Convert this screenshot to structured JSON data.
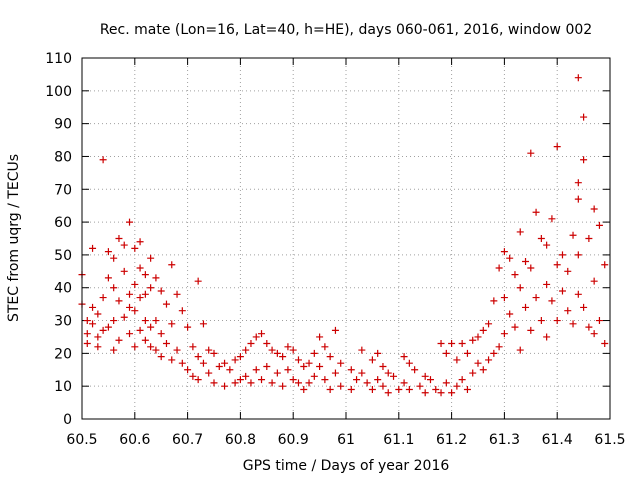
{
  "chart_data": {
    "type": "scatter",
    "title": "Rec. mate (Lon=16, Lat=40, h=HE), days 060-061, 2016, window 002",
    "xlabel": "GPS time / Days of year 2016",
    "ylabel": "STEC from uqrg / TECUs",
    "xlim": [
      60.5,
      61.5
    ],
    "ylim": [
      0,
      110
    ],
    "x_ticks": [
      "60.5",
      "60.6",
      "60.7",
      "60.8",
      "60.9",
      "61",
      "61.1",
      "61.2",
      "61.3",
      "61.4",
      "61.5"
    ],
    "y_ticks": [
      "0",
      "10",
      "20",
      "30",
      "40",
      "50",
      "60",
      "70",
      "80",
      "90",
      "100",
      "110"
    ],
    "grid": true,
    "marker": "+",
    "color": "#cc0000",
    "series": [
      {
        "points": [
          [
            60.5,
            44
          ],
          [
            60.5,
            35
          ],
          [
            60.51,
            30
          ],
          [
            60.51,
            26
          ],
          [
            60.51,
            23
          ],
          [
            60.52,
            52
          ],
          [
            60.52,
            34
          ],
          [
            60.52,
            29
          ],
          [
            60.53,
            32
          ],
          [
            60.53,
            25
          ],
          [
            60.53,
            22
          ],
          [
            60.54,
            79
          ],
          [
            60.54,
            37
          ],
          [
            60.54,
            27
          ],
          [
            60.55,
            51
          ],
          [
            60.55,
            43
          ],
          [
            60.55,
            28
          ],
          [
            60.56,
            49
          ],
          [
            60.56,
            40
          ],
          [
            60.56,
            30
          ],
          [
            60.56,
            21
          ],
          [
            60.57,
            55
          ],
          [
            60.57,
            36
          ],
          [
            60.57,
            24
          ],
          [
            60.58,
            53
          ],
          [
            60.58,
            45
          ],
          [
            60.58,
            31
          ],
          [
            60.59,
            60
          ],
          [
            60.59,
            38
          ],
          [
            60.59,
            34
          ],
          [
            60.59,
            26
          ],
          [
            60.6,
            52
          ],
          [
            60.6,
            41
          ],
          [
            60.6,
            33
          ],
          [
            60.6,
            22
          ],
          [
            60.61,
            54
          ],
          [
            60.61,
            46
          ],
          [
            60.61,
            37
          ],
          [
            60.61,
            27
          ],
          [
            60.62,
            44
          ],
          [
            60.62,
            38
          ],
          [
            60.62,
            30
          ],
          [
            60.62,
            24
          ],
          [
            60.63,
            49
          ],
          [
            60.63,
            40
          ],
          [
            60.63,
            28
          ],
          [
            60.63,
            22
          ],
          [
            60.64,
            43
          ],
          [
            60.64,
            30
          ],
          [
            60.64,
            21
          ],
          [
            60.65,
            39
          ],
          [
            60.65,
            26
          ],
          [
            60.65,
            19
          ],
          [
            60.66,
            35
          ],
          [
            60.66,
            23
          ],
          [
            60.67,
            47
          ],
          [
            60.67,
            29
          ],
          [
            60.67,
            18
          ],
          [
            60.68,
            38
          ],
          [
            60.68,
            21
          ],
          [
            60.69,
            33
          ],
          [
            60.69,
            17
          ],
          [
            60.7,
            28
          ],
          [
            60.7,
            15
          ],
          [
            60.71,
            22
          ],
          [
            60.71,
            13
          ],
          [
            60.72,
            42
          ],
          [
            60.72,
            19
          ],
          [
            60.72,
            12
          ],
          [
            60.73,
            29
          ],
          [
            60.73,
            17
          ],
          [
            60.74,
            21
          ],
          [
            60.74,
            14
          ],
          [
            60.75,
            20
          ],
          [
            60.75,
            11
          ],
          [
            60.76,
            16
          ],
          [
            60.77,
            17
          ],
          [
            60.77,
            10
          ],
          [
            60.78,
            15
          ],
          [
            60.79,
            18
          ],
          [
            60.79,
            11
          ],
          [
            60.8,
            19
          ],
          [
            60.8,
            12
          ],
          [
            60.81,
            21
          ],
          [
            60.81,
            13
          ],
          [
            60.82,
            23
          ],
          [
            60.82,
            11
          ],
          [
            60.83,
            25
          ],
          [
            60.83,
            15
          ],
          [
            60.84,
            26
          ],
          [
            60.84,
            12
          ],
          [
            60.85,
            23
          ],
          [
            60.85,
            16
          ],
          [
            60.86,
            21
          ],
          [
            60.86,
            11
          ],
          [
            60.87,
            20
          ],
          [
            60.87,
            14
          ],
          [
            60.88,
            19
          ],
          [
            60.88,
            10
          ],
          [
            60.89,
            22
          ],
          [
            60.89,
            15
          ],
          [
            60.9,
            21
          ],
          [
            60.9,
            12
          ],
          [
            60.91,
            18
          ],
          [
            60.91,
            11
          ],
          [
            60.92,
            16
          ],
          [
            60.92,
            9
          ],
          [
            60.93,
            17
          ],
          [
            60.93,
            11
          ],
          [
            60.94,
            20
          ],
          [
            60.94,
            13
          ],
          [
            60.95,
            25
          ],
          [
            60.95,
            16
          ],
          [
            60.96,
            22
          ],
          [
            60.96,
            12
          ],
          [
            60.97,
            19
          ],
          [
            60.97,
            9
          ],
          [
            60.98,
            27
          ],
          [
            60.98,
            14
          ],
          [
            60.99,
            17
          ],
          [
            60.99,
            10
          ],
          [
            61.01,
            15
          ],
          [
            61.01,
            9
          ],
          [
            61.02,
            12
          ],
          [
            61.03,
            21
          ],
          [
            61.03,
            14
          ],
          [
            61.04,
            11
          ],
          [
            61.05,
            18
          ],
          [
            61.05,
            9
          ],
          [
            61.06,
            20
          ],
          [
            61.06,
            12
          ],
          [
            61.07,
            16
          ],
          [
            61.07,
            10
          ],
          [
            61.08,
            14
          ],
          [
            61.08,
            8
          ],
          [
            61.09,
            13
          ],
          [
            61.1,
            9
          ],
          [
            61.11,
            19
          ],
          [
            61.11,
            11
          ],
          [
            61.12,
            17
          ],
          [
            61.12,
            9
          ],
          [
            61.13,
            15
          ],
          [
            61.14,
            10
          ],
          [
            61.15,
            13
          ],
          [
            61.15,
            8
          ],
          [
            61.16,
            12
          ],
          [
            61.17,
            9
          ],
          [
            61.18,
            23
          ],
          [
            61.18,
            8
          ],
          [
            61.19,
            20
          ],
          [
            61.19,
            11
          ],
          [
            61.2,
            23
          ],
          [
            61.2,
            8
          ],
          [
            61.21,
            18
          ],
          [
            61.21,
            10
          ],
          [
            61.22,
            23
          ],
          [
            61.22,
            12
          ],
          [
            61.23,
            20
          ],
          [
            61.23,
            9
          ],
          [
            61.24,
            24
          ],
          [
            61.24,
            14
          ],
          [
            61.25,
            25
          ],
          [
            61.25,
            17
          ],
          [
            61.26,
            27
          ],
          [
            61.26,
            15
          ],
          [
            61.27,
            29
          ],
          [
            61.27,
            18
          ],
          [
            61.28,
            36
          ],
          [
            61.28,
            20
          ],
          [
            61.29,
            46
          ],
          [
            61.29,
            22
          ],
          [
            61.3,
            51
          ],
          [
            61.3,
            37
          ],
          [
            61.3,
            26
          ],
          [
            61.31,
            49
          ],
          [
            61.31,
            32
          ],
          [
            61.32,
            44
          ],
          [
            61.32,
            28
          ],
          [
            61.33,
            57
          ],
          [
            61.33,
            40
          ],
          [
            61.33,
            21
          ],
          [
            61.34,
            48
          ],
          [
            61.34,
            34
          ],
          [
            61.35,
            81
          ],
          [
            61.35,
            46
          ],
          [
            61.35,
            27
          ],
          [
            61.36,
            63
          ],
          [
            61.36,
            37
          ],
          [
            61.37,
            55
          ],
          [
            61.37,
            30
          ],
          [
            61.38,
            53
          ],
          [
            61.38,
            41
          ],
          [
            61.38,
            25
          ],
          [
            61.39,
            61
          ],
          [
            61.39,
            36
          ],
          [
            61.4,
            83
          ],
          [
            61.4,
            47
          ],
          [
            61.4,
            30
          ],
          [
            61.41,
            50
          ],
          [
            61.41,
            39
          ],
          [
            61.42,
            45
          ],
          [
            61.42,
            33
          ],
          [
            61.43,
            56
          ],
          [
            61.43,
            29
          ],
          [
            61.44,
            104
          ],
          [
            61.44,
            72
          ],
          [
            61.44,
            67
          ],
          [
            61.44,
            50
          ],
          [
            61.44,
            38
          ],
          [
            61.45,
            92
          ],
          [
            61.45,
            79
          ],
          [
            61.45,
            34
          ],
          [
            61.46,
            55
          ],
          [
            61.46,
            28
          ],
          [
            61.47,
            64
          ],
          [
            61.47,
            42
          ],
          [
            61.47,
            26
          ],
          [
            61.48,
            59
          ],
          [
            61.48,
            30
          ],
          [
            61.49,
            47
          ],
          [
            61.49,
            23
          ]
        ]
      }
    ]
  }
}
